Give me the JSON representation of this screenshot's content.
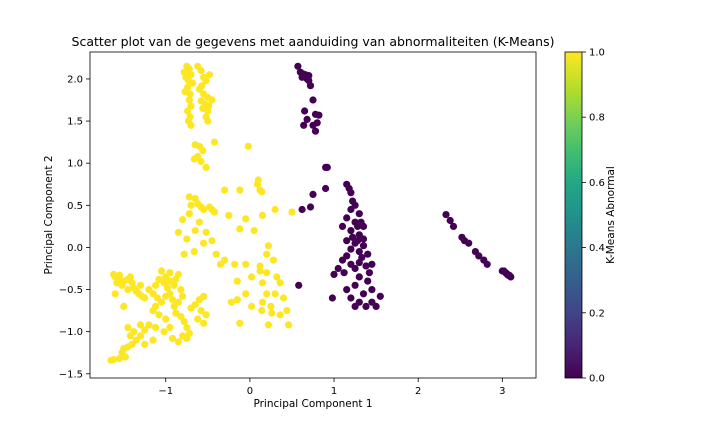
{
  "chart_data": {
    "type": "scatter",
    "title": "Scatter plot van de gegevens met aanduiding van abnormaliteiten (K-Means)",
    "xlabel": "Principal Component 1",
    "ylabel": "Principal Component 2",
    "xlim": [
      -1.9,
      3.4
    ],
    "ylim": [
      -1.55,
      2.32
    ],
    "xticks": [
      -1,
      0,
      1,
      2,
      3
    ],
    "yticks": [
      -1.5,
      -1.0,
      -0.5,
      0.0,
      0.5,
      1.0,
      1.5,
      2.0
    ],
    "xtick_labels": [
      "−1",
      "0",
      "1",
      "2",
      "3"
    ],
    "ytick_labels": [
      "−1.5",
      "−1.0",
      "−0.5",
      "0.0",
      "0.5",
      "1.0",
      "1.5",
      "2.0"
    ],
    "grid": false,
    "colormap": "viridis",
    "colorbar": {
      "label": "K-Means Abnormal",
      "range": [
        0,
        1
      ],
      "ticks": [
        0.0,
        0.2,
        0.4,
        0.6,
        0.8,
        1.0
      ],
      "tick_labels": [
        "0.0",
        "0.2",
        "0.4",
        "0.6",
        "0.8",
        "1.0"
      ]
    },
    "colors": {
      "abnormal": "#fde725",
      "normal": "#440154"
    },
    "series": [
      {
        "color_value": 1,
        "points": [
          [
            -0.75,
            2.15
          ],
          [
            -0.72,
            2.12
          ],
          [
            -0.78,
            2.08
          ],
          [
            -0.7,
            2.05
          ],
          [
            -0.76,
            2.02
          ],
          [
            -0.73,
            1.98
          ],
          [
            -0.68,
            1.95
          ],
          [
            -0.74,
            1.9
          ],
          [
            -0.77,
            1.85
          ],
          [
            -0.71,
            1.82
          ],
          [
            -0.62,
            2.15
          ],
          [
            -0.58,
            2.1
          ],
          [
            -0.55,
            2.02
          ],
          [
            -0.52,
            1.98
          ],
          [
            -0.57,
            1.92
          ],
          [
            -0.6,
            1.88
          ],
          [
            -0.55,
            1.82
          ],
          [
            -0.5,
            1.78
          ],
          [
            -0.58,
            1.74
          ],
          [
            -0.53,
            1.7
          ],
          [
            -0.49,
            1.68
          ],
          [
            -0.56,
            1.65
          ],
          [
            -0.5,
            1.62
          ],
          [
            -0.52,
            1.55
          ],
          [
            -0.72,
            1.75
          ],
          [
            -0.7,
            1.68
          ],
          [
            -0.74,
            1.62
          ],
          [
            -0.71,
            1.55
          ],
          [
            -0.73,
            1.5
          ],
          [
            -0.7,
            1.45
          ],
          [
            -0.5,
            1.5
          ],
          [
            -0.48,
            2.05
          ],
          [
            -0.45,
            1.75
          ],
          [
            -0.65,
            1.22
          ],
          [
            -0.6,
            1.2
          ],
          [
            -0.56,
            1.15
          ],
          [
            -0.62,
            1.08
          ],
          [
            -0.66,
            1.05
          ],
          [
            -0.58,
            1.02
          ],
          [
            -0.42,
            1.25
          ],
          [
            -0.52,
            0.95
          ],
          [
            -0.3,
            0.68
          ],
          [
            -0.12,
            0.68
          ],
          [
            -0.02,
            1.2
          ],
          [
            0.1,
            0.8
          ],
          [
            0.09,
            0.75
          ],
          [
            0.12,
            0.68
          ],
          [
            0.14,
            0.66
          ],
          [
            -0.72,
            0.6
          ],
          [
            -0.65,
            0.58
          ],
          [
            -0.62,
            0.52
          ],
          [
            -0.58,
            0.48
          ],
          [
            -0.7,
            0.5
          ],
          [
            -0.48,
            0.48
          ],
          [
            -0.45,
            0.45
          ],
          [
            -0.42,
            0.42
          ],
          [
            -0.55,
            0.45
          ],
          [
            -0.72,
            0.4
          ],
          [
            -0.8,
            0.33
          ],
          [
            -0.6,
            0.3
          ],
          [
            -0.65,
            0.2
          ],
          [
            -0.52,
            0.18
          ],
          [
            -0.75,
            0.1
          ],
          [
            -0.85,
            0.18
          ],
          [
            -0.55,
            0.05
          ],
          [
            -0.45,
            0.08
          ],
          [
            -0.25,
            0.38
          ],
          [
            -0.12,
            0.22
          ],
          [
            -0.05,
            0.34
          ],
          [
            0.05,
            0.2
          ],
          [
            0.15,
            0.38
          ],
          [
            0.3,
            0.45
          ],
          [
            0.5,
            0.42
          ],
          [
            -0.78,
            -0.08
          ],
          [
            -0.66,
            -0.05
          ],
          [
            -0.4,
            -0.08
          ],
          [
            -0.3,
            -0.15
          ],
          [
            -0.35,
            -0.2
          ],
          [
            -0.18,
            -0.2
          ],
          [
            -0.05,
            -0.2
          ],
          [
            0.12,
            -0.22
          ],
          [
            0.22,
            0.02
          ],
          [
            0.2,
            -0.08
          ],
          [
            0.28,
            -0.15
          ],
          [
            0.12,
            -0.28
          ],
          [
            0.2,
            -0.3
          ],
          [
            -0.15,
            -0.4
          ],
          [
            -0.05,
            -0.55
          ],
          [
            0.02,
            -0.35
          ],
          [
            0.15,
            -0.42
          ],
          [
            0.32,
            -0.35
          ],
          [
            0.36,
            -0.42
          ],
          [
            0.2,
            -0.55
          ],
          [
            0.3,
            -0.55
          ],
          [
            0.4,
            -0.6
          ],
          [
            0.44,
            -0.75
          ],
          [
            0.36,
            -0.8
          ],
          [
            0.26,
            -0.78
          ],
          [
            0.14,
            -0.75
          ],
          [
            0.22,
            -0.92
          ],
          [
            0.46,
            -0.92
          ],
          [
            -0.15,
            -0.62
          ],
          [
            -0.22,
            -0.65
          ],
          [
            -0.12,
            -0.9
          ],
          [
            0.15,
            -0.65
          ],
          [
            0.02,
            -0.7
          ],
          [
            0.25,
            -0.7
          ],
          [
            -1.55,
            -0.33
          ],
          [
            -1.6,
            -0.35
          ],
          [
            -1.62,
            -0.32
          ],
          [
            -1.55,
            -0.38
          ],
          [
            -1.58,
            -0.42
          ],
          [
            -1.52,
            -0.45
          ],
          [
            -1.5,
            -0.4
          ],
          [
            -1.45,
            -0.38
          ],
          [
            -1.42,
            -0.35
          ],
          [
            -1.4,
            -0.42
          ],
          [
            -1.45,
            -0.5
          ],
          [
            -1.38,
            -0.48
          ],
          [
            -1.35,
            -0.52
          ],
          [
            -1.32,
            -0.55
          ],
          [
            -1.3,
            -0.45
          ],
          [
            -1.28,
            -0.58
          ],
          [
            -1.25,
            -0.6
          ],
          [
            -1.2,
            -0.5
          ],
          [
            -1.15,
            -0.55
          ],
          [
            -1.1,
            -0.6
          ],
          [
            -1.05,
            -0.65
          ],
          [
            -1.0,
            -0.58
          ],
          [
            -0.95,
            -0.55
          ],
          [
            -0.92,
            -0.62
          ],
          [
            -0.98,
            -0.48
          ],
          [
            -1.02,
            -0.42
          ],
          [
            -1.08,
            -0.38
          ],
          [
            -1.12,
            -0.45
          ],
          [
            -1.0,
            -0.35
          ],
          [
            -0.95,
            -0.4
          ],
          [
            -0.9,
            -0.45
          ],
          [
            -0.88,
            -0.38
          ],
          [
            -0.85,
            -0.32
          ],
          [
            -0.82,
            -0.5
          ],
          [
            -0.8,
            -0.58
          ],
          [
            -0.85,
            -0.65
          ],
          [
            -0.9,
            -0.7
          ],
          [
            -0.88,
            -0.78
          ],
          [
            -0.82,
            -0.82
          ],
          [
            -0.78,
            -0.88
          ],
          [
            -0.75,
            -0.95
          ],
          [
            -0.72,
            -1.02
          ],
          [
            -0.8,
            -1.05
          ],
          [
            -0.7,
            -0.72
          ],
          [
            -0.65,
            -0.68
          ],
          [
            -0.6,
            -0.62
          ],
          [
            -0.55,
            -0.58
          ],
          [
            -0.58,
            -0.75
          ],
          [
            -0.52,
            -0.8
          ],
          [
            -0.55,
            -0.9
          ],
          [
            -0.62,
            -0.85
          ],
          [
            -0.95,
            -0.3
          ],
          [
            -1.05,
            -0.28
          ],
          [
            -1.12,
            -0.7
          ],
          [
            -1.15,
            -0.75
          ],
          [
            -1.08,
            -0.8
          ],
          [
            -1.0,
            -0.85
          ],
          [
            -0.95,
            -0.95
          ],
          [
            -1.02,
            -1.0
          ],
          [
            -1.12,
            -0.95
          ],
          [
            -1.2,
            -0.92
          ],
          [
            -1.25,
            -0.98
          ],
          [
            -1.3,
            -1.05
          ],
          [
            -1.35,
            -1.1
          ],
          [
            -1.4,
            -1.15
          ],
          [
            -1.45,
            -1.18
          ],
          [
            -1.5,
            -1.2
          ],
          [
            -1.52,
            -1.25
          ],
          [
            -1.48,
            -1.3
          ],
          [
            -1.55,
            -1.32
          ],
          [
            -1.62,
            -1.33
          ],
          [
            -1.65,
            -1.34
          ],
          [
            -1.42,
            -1.05
          ],
          [
            -1.38,
            -1.0
          ],
          [
            -1.45,
            -0.95
          ],
          [
            -1.3,
            -0.92
          ],
          [
            -1.25,
            -1.15
          ],
          [
            -1.15,
            -1.1
          ],
          [
            -1.5,
            -0.7
          ],
          [
            -1.6,
            -0.55
          ],
          [
            -0.92,
            -1.08
          ],
          [
            -0.85,
            -1.12
          ],
          [
            -0.75,
            -1.08
          ]
        ]
      },
      {
        "color_value": 0,
        "points": [
          [
            0.57,
            2.15
          ],
          [
            0.6,
            2.08
          ],
          [
            0.63,
            2.06
          ],
          [
            0.66,
            2.05
          ],
          [
            0.7,
            2.04
          ],
          [
            0.62,
            2.02
          ],
          [
            0.68,
            2.0
          ],
          [
            0.7,
            1.98
          ],
          [
            0.72,
            1.92
          ],
          [
            0.65,
            1.62
          ],
          [
            0.75,
            1.75
          ],
          [
            0.78,
            1.58
          ],
          [
            0.68,
            1.52
          ],
          [
            0.75,
            1.45
          ],
          [
            0.8,
            1.48
          ],
          [
            0.82,
            1.57
          ],
          [
            0.64,
            1.45
          ],
          [
            0.78,
            1.38
          ],
          [
            0.9,
            0.95
          ],
          [
            0.92,
            0.95
          ],
          [
            0.75,
            0.63
          ],
          [
            0.9,
            0.7
          ],
          [
            0.72,
            0.48
          ],
          [
            0.62,
            0.45
          ],
          [
            1.15,
            0.75
          ],
          [
            1.18,
            0.7
          ],
          [
            1.2,
            0.65
          ],
          [
            1.22,
            0.55
          ],
          [
            1.25,
            0.5
          ],
          [
            1.2,
            0.45
          ],
          [
            1.3,
            0.4
          ],
          [
            1.25,
            0.3
          ],
          [
            1.15,
            0.35
          ],
          [
            1.28,
            0.25
          ],
          [
            1.32,
            0.3
          ],
          [
            1.35,
            0.25
          ],
          [
            1.1,
            0.25
          ],
          [
            1.2,
            0.2
          ],
          [
            1.3,
            0.15
          ],
          [
            1.35,
            0.1
          ],
          [
            1.15,
            0.08
          ],
          [
            1.25,
            0.05
          ],
          [
            1.2,
            -0.02
          ],
          [
            1.3,
            -0.05
          ],
          [
            1.35,
            0.02
          ],
          [
            1.4,
            -0.08
          ],
          [
            1.15,
            -0.1
          ],
          [
            1.1,
            -0.15
          ],
          [
            1.2,
            -0.2
          ],
          [
            1.25,
            -0.25
          ],
          [
            1.3,
            -0.18
          ],
          [
            1.38,
            -0.22
          ],
          [
            1.45,
            -0.2
          ],
          [
            1.05,
            -0.25
          ],
          [
            1.12,
            -0.3
          ],
          [
            1.3,
            -0.35
          ],
          [
            1.4,
            -0.4
          ],
          [
            1.45,
            -0.5
          ],
          [
            1.35,
            -0.55
          ],
          [
            1.25,
            -0.45
          ],
          [
            1.15,
            -0.5
          ],
          [
            1.2,
            -0.6
          ],
          [
            1.3,
            -0.65
          ],
          [
            1.38,
            -0.7
          ],
          [
            1.45,
            -0.65
          ],
          [
            1.5,
            -0.7
          ],
          [
            1.55,
            -0.58
          ],
          [
            1.42,
            -0.3
          ],
          [
            1.0,
            -0.32
          ],
          [
            0.98,
            -0.6
          ],
          [
            1.25,
            -0.7
          ],
          [
            1.22,
            0.12
          ],
          [
            1.28,
            0.08
          ],
          [
            1.33,
            -0.12
          ],
          [
            0.58,
            -0.45
          ],
          [
            2.33,
            0.39
          ],
          [
            2.38,
            0.32
          ],
          [
            2.42,
            0.25
          ],
          [
            2.52,
            0.12
          ],
          [
            2.55,
            0.08
          ],
          [
            2.6,
            0.05
          ],
          [
            2.68,
            -0.05
          ],
          [
            2.72,
            -0.1
          ],
          [
            2.78,
            -0.15
          ],
          [
            2.82,
            -0.2
          ],
          [
            3.0,
            -0.28
          ],
          [
            3.02,
            -0.28
          ],
          [
            3.04,
            -0.3
          ],
          [
            3.05,
            -0.31
          ],
          [
            3.06,
            -0.32
          ],
          [
            3.07,
            -0.33
          ],
          [
            3.08,
            -0.33
          ],
          [
            3.09,
            -0.34
          ],
          [
            3.1,
            -0.35
          ]
        ]
      }
    ]
  }
}
